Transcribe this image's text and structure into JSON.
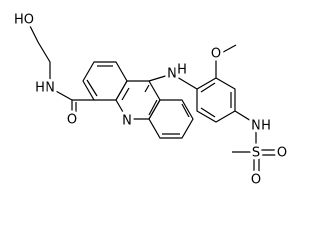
{
  "molecule": {
    "labels": [
      "HO",
      "N",
      "H",
      "O",
      "N",
      "N",
      "H",
      "O",
      "N",
      "H",
      "S",
      "O",
      "O"
    ]
  }
}
